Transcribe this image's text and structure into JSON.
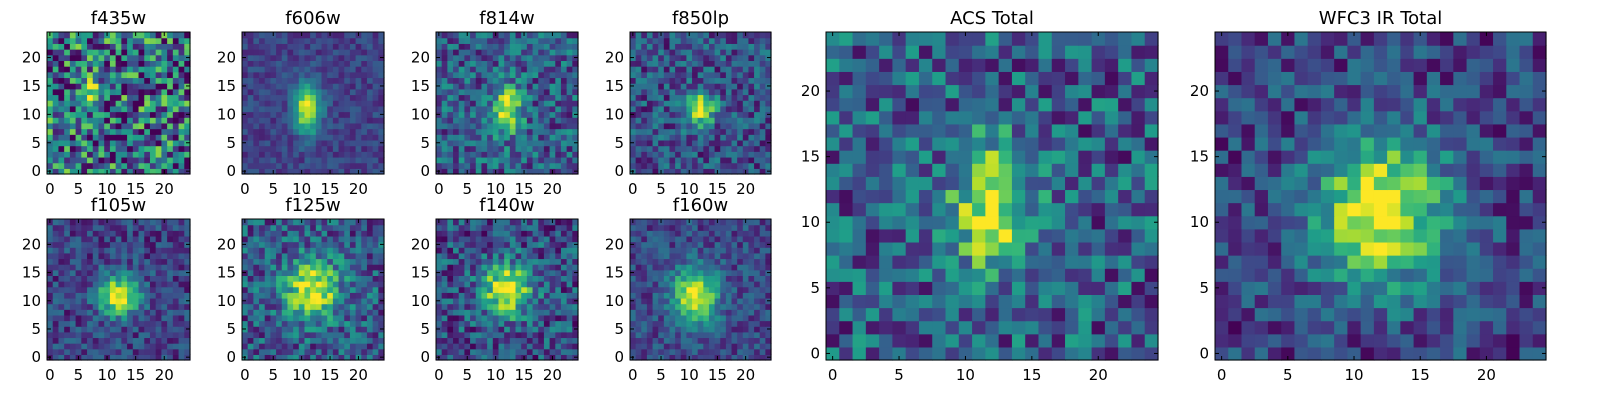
{
  "chart_data": [
    {
      "type": "heatmap",
      "title": "f435w",
      "xticks": [
        0,
        5,
        10,
        15,
        20
      ],
      "yticks": [
        0,
        5,
        10,
        15,
        20
      ],
      "xlim": [
        0,
        24
      ],
      "ylim": [
        0,
        24
      ],
      "grid": false,
      "colormap": "viridis",
      "peak_pixel": {
        "x": 8,
        "y": 14
      },
      "n_pixels": [
        25,
        25
      ]
    },
    {
      "type": "heatmap",
      "title": "f606w",
      "xticks": [
        0,
        5,
        10,
        15,
        20
      ],
      "yticks": [
        0,
        5,
        10,
        15,
        20
      ],
      "xlim": [
        0,
        24
      ],
      "ylim": [
        0,
        24
      ],
      "grid": false,
      "colormap": "viridis",
      "peak_pixel": {
        "x": 11,
        "y": 11
      },
      "n_pixels": [
        25,
        25
      ]
    },
    {
      "type": "heatmap",
      "title": "f814w",
      "xticks": [
        0,
        5,
        10,
        15,
        20
      ],
      "yticks": [
        0,
        5,
        10,
        15,
        20
      ],
      "xlim": [
        0,
        24
      ],
      "ylim": [
        0,
        24
      ],
      "grid": false,
      "colormap": "viridis",
      "peak_pixel": {
        "x": 12,
        "y": 11
      },
      "n_pixels": [
        25,
        25
      ]
    },
    {
      "type": "heatmap",
      "title": "f850lp",
      "xticks": [
        0,
        5,
        10,
        15,
        20
      ],
      "yticks": [
        0,
        5,
        10,
        15,
        20
      ],
      "xlim": [
        0,
        24
      ],
      "ylim": [
        0,
        24
      ],
      "grid": false,
      "colormap": "viridis",
      "peak_pixel": {
        "x": 12,
        "y": 11
      },
      "n_pixels": [
        25,
        25
      ]
    },
    {
      "type": "heatmap",
      "title": "f105w",
      "xticks": [
        0,
        5,
        10,
        15,
        20
      ],
      "yticks": [
        0,
        5,
        10,
        15,
        20
      ],
      "xlim": [
        0,
        24
      ],
      "ylim": [
        0,
        24
      ],
      "grid": false,
      "colormap": "viridis",
      "peak_pixel": {
        "x": 12,
        "y": 11
      },
      "n_pixels": [
        25,
        25
      ]
    },
    {
      "type": "heatmap",
      "title": "f125w",
      "xticks": [
        0,
        5,
        10,
        15,
        20
      ],
      "yticks": [
        0,
        5,
        10,
        15,
        20
      ],
      "xlim": [
        0,
        24
      ],
      "ylim": [
        0,
        24
      ],
      "grid": false,
      "colormap": "viridis",
      "peak_pixel": {
        "x": 12,
        "y": 12
      },
      "n_pixels": [
        25,
        25
      ]
    },
    {
      "type": "heatmap",
      "title": "f140w",
      "xticks": [
        0,
        5,
        10,
        15,
        20
      ],
      "yticks": [
        0,
        5,
        10,
        15,
        20
      ],
      "xlim": [
        0,
        24
      ],
      "ylim": [
        0,
        24
      ],
      "grid": false,
      "colormap": "viridis",
      "peak_pixel": {
        "x": 12,
        "y": 12
      },
      "n_pixels": [
        25,
        25
      ]
    },
    {
      "type": "heatmap",
      "title": "f160w",
      "xticks": [
        0,
        5,
        10,
        15,
        20
      ],
      "yticks": [
        0,
        5,
        10,
        15,
        20
      ],
      "xlim": [
        0,
        24
      ],
      "ylim": [
        0,
        24
      ],
      "grid": false,
      "colormap": "viridis",
      "peak_pixel": {
        "x": 11,
        "y": 11
      },
      "n_pixels": [
        25,
        25
      ]
    },
    {
      "type": "heatmap",
      "title": "ACS Total",
      "xticks": [
        0,
        5,
        10,
        15,
        20
      ],
      "yticks": [
        0,
        5,
        10,
        15,
        20
      ],
      "xlim": [
        0,
        24
      ],
      "ylim": [
        0,
        24
      ],
      "grid": false,
      "colormap": "viridis",
      "peak_pixel": {
        "x": 12,
        "y": 11
      },
      "n_pixels": [
        25,
        25
      ]
    },
    {
      "type": "heatmap",
      "title": "WFC3 IR Total",
      "xticks": [
        0,
        5,
        10,
        15,
        20
      ],
      "yticks": [
        0,
        5,
        10,
        15,
        20
      ],
      "xlim": [
        0,
        24
      ],
      "ylim": [
        0,
        24
      ],
      "grid": false,
      "colormap": "viridis",
      "peak_pixel": {
        "x": 12,
        "y": 11
      },
      "n_pixels": [
        25,
        25
      ]
    }
  ],
  "colormap_stops": [
    "#440154",
    "#482878",
    "#3e4989",
    "#31688e",
    "#26828e",
    "#1f9e89",
    "#35b779",
    "#6ece58",
    "#b5de2b",
    "#fde725"
  ]
}
